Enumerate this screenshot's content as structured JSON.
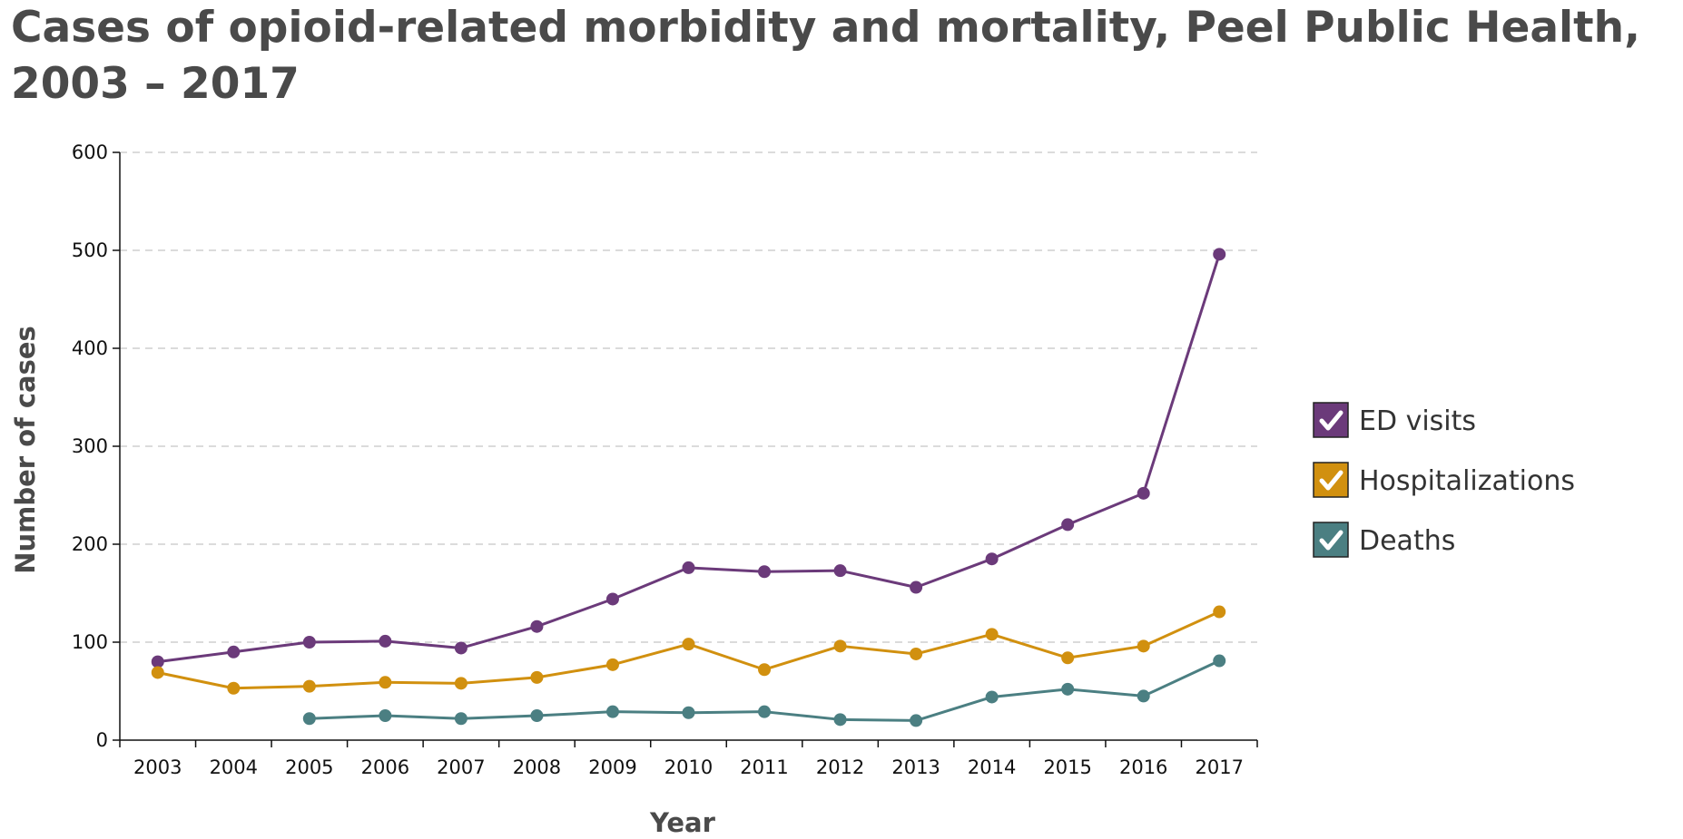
{
  "chart_data": {
    "type": "line",
    "title": "Cases of opioid-related morbidity and mortality, Peel Public Health, 2003 – 2017",
    "xlabel": "Year",
    "ylabel": "Number of cases",
    "ylim": [
      0,
      600
    ],
    "yticks": [
      0,
      100,
      200,
      300,
      400,
      500,
      600
    ],
    "grid": "horizontal dashed",
    "legend_position": "right",
    "categories": [
      "2003",
      "2004",
      "2005",
      "2006",
      "2007",
      "2008",
      "2009",
      "2010",
      "2011",
      "2012",
      "2013",
      "2014",
      "2015",
      "2016",
      "2017"
    ],
    "series": [
      {
        "name": "ED visits",
        "color": "#6b3a7a",
        "values": [
          80,
          90,
          100,
          101,
          94,
          116,
          144,
          176,
          172,
          173,
          156,
          185,
          220,
          252,
          496
        ]
      },
      {
        "name": "Hospitalizations",
        "color": "#d1900f",
        "values": [
          69,
          53,
          55,
          59,
          58,
          64,
          77,
          98,
          72,
          96,
          88,
          108,
          84,
          96,
          131
        ]
      },
      {
        "name": "Deaths",
        "color": "#4b7f82",
        "values": [
          null,
          null,
          22,
          25,
          22,
          25,
          29,
          28,
          29,
          21,
          20,
          44,
          52,
          45,
          81
        ]
      }
    ]
  }
}
